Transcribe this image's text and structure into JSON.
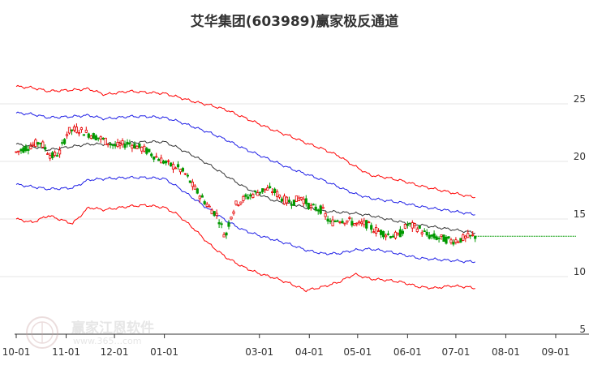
{
  "chart_data": {
    "type": "candlestick",
    "title": "艾华集团(603989)赢家极反通道",
    "ylim": [
      5,
      27.5
    ],
    "y_ticks": [
      5,
      10,
      15,
      20,
      25
    ],
    "y_tick_labels": [
      "5",
      "10",
      "15",
      "20",
      "25"
    ],
    "x_tick_labels": [
      "10-01",
      "11-01",
      "12-01",
      "01-01",
      "03-01",
      "04-01",
      "05-01",
      "06-01",
      "07-01",
      "08-01",
      "09-01"
    ],
    "x_tick_days": [
      0,
      31,
      61,
      92,
      151,
      182,
      212,
      243,
      273,
      304,
      335
    ],
    "last_day": 285,
    "last_close": 13.5,
    "colors": {
      "up": "#e60000",
      "down": "#009900",
      "outer_band": "#ff0000",
      "inner_band": "#1f1fe6",
      "middle_line": "#333333",
      "last_price_line": "#009900",
      "grid": "#e6e6e6",
      "axis": "#333333"
    },
    "series": [
      {
        "name": "upper_outer",
        "x": [
          0,
          10,
          20,
          35,
          45,
          55,
          70,
          80,
          92,
          100,
          110,
          120,
          130,
          140,
          150,
          160,
          170,
          180,
          190,
          200,
          210,
          220,
          230,
          240,
          250,
          260,
          270,
          280,
          285
        ],
        "values": [
          26.5,
          26.4,
          26.1,
          26.2,
          26.3,
          25.8,
          26.1,
          26.0,
          25.9,
          25.6,
          25.2,
          24.9,
          24.5,
          23.9,
          23.3,
          22.7,
          22.2,
          21.6,
          21.1,
          20.5,
          19.6,
          18.8,
          18.6,
          18.3,
          17.9,
          17.6,
          17.3,
          17.0,
          16.9
        ]
      },
      {
        "name": "upper_inner",
        "x": [
          0,
          10,
          20,
          35,
          45,
          55,
          70,
          80,
          92,
          100,
          110,
          120,
          130,
          140,
          150,
          160,
          170,
          180,
          190,
          200,
          210,
          220,
          230,
          240,
          250,
          260,
          270,
          280,
          285
        ],
        "values": [
          24.2,
          24.1,
          23.8,
          23.9,
          24.0,
          23.7,
          23.9,
          23.9,
          23.8,
          23.5,
          23.0,
          22.5,
          21.9,
          21.2,
          20.6,
          20.0,
          19.4,
          18.9,
          18.4,
          17.8,
          17.2,
          16.8,
          16.6,
          16.4,
          16.1,
          15.9,
          15.7,
          15.5,
          15.4
        ]
      },
      {
        "name": "middle",
        "x": [
          0,
          10,
          20,
          35,
          45,
          55,
          70,
          80,
          92,
          100,
          110,
          120,
          130,
          140,
          150,
          160,
          170,
          180,
          190,
          200,
          210,
          220,
          230,
          240,
          250,
          260,
          270,
          280,
          285
        ],
        "values": [
          21.5,
          21.3,
          21.0,
          21.3,
          21.5,
          21.5,
          21.6,
          21.7,
          21.7,
          21.2,
          20.5,
          19.7,
          18.8,
          17.9,
          17.2,
          16.6,
          16.3,
          16.0,
          15.7,
          15.6,
          15.5,
          15.3,
          15.0,
          14.7,
          14.5,
          14.3,
          14.1,
          13.9,
          13.8
        ]
      },
      {
        "name": "lower_inner",
        "x": [
          0,
          10,
          20,
          35,
          45,
          55,
          70,
          80,
          92,
          100,
          110,
          120,
          130,
          140,
          150,
          160,
          170,
          180,
          190,
          200,
          210,
          220,
          230,
          240,
          250,
          260,
          270,
          280,
          285
        ],
        "values": [
          18.0,
          17.8,
          17.6,
          17.7,
          18.4,
          18.5,
          18.6,
          18.6,
          18.5,
          17.8,
          16.8,
          15.8,
          14.9,
          14.1,
          13.6,
          13.2,
          12.8,
          12.3,
          12.0,
          12.0,
          12.3,
          12.4,
          12.2,
          11.9,
          11.6,
          11.5,
          11.4,
          11.3,
          11.3
        ]
      },
      {
        "name": "lower_outer",
        "x": [
          0,
          10,
          20,
          35,
          45,
          55,
          70,
          80,
          92,
          100,
          110,
          120,
          130,
          140,
          150,
          160,
          170,
          180,
          190,
          200,
          210,
          220,
          230,
          240,
          250,
          260,
          270,
          280,
          285
        ],
        "values": [
          15.0,
          14.7,
          15.3,
          14.6,
          16.0,
          15.8,
          16.1,
          16.2,
          16.0,
          15.4,
          14.2,
          12.8,
          11.7,
          10.9,
          10.3,
          9.9,
          9.4,
          8.8,
          9.1,
          9.5,
          10.2,
          9.8,
          9.7,
          9.5,
          9.1,
          9.0,
          9.2,
          9.1,
          9.0
        ]
      }
    ],
    "price_path": {
      "x": [
        0,
        8,
        15,
        22,
        27,
        32,
        38,
        45,
        52,
        62,
        70,
        80,
        88,
        95,
        100,
        105,
        110,
        115,
        120,
        125,
        130,
        133,
        137,
        142,
        148,
        155,
        160,
        167,
        172,
        177,
        183,
        190,
        195,
        200,
        207,
        212,
        217,
        222,
        230,
        237,
        243,
        250,
        255,
        260,
        265,
        270,
        275,
        280,
        285
      ],
      "values": [
        20.8,
        21.3,
        21.7,
        20.4,
        20.8,
        22.6,
        22.8,
        22.4,
        22.0,
        21.3,
        21.6,
        21.0,
        20.3,
        19.7,
        19.5,
        18.9,
        17.8,
        16.9,
        16.0,
        15.3,
        13.4,
        15.2,
        16.4,
        16.8,
        17.2,
        17.6,
        17.4,
        16.6,
        16.5,
        16.9,
        16.0,
        15.8,
        14.6,
        15.0,
        14.8,
        14.5,
        14.6,
        14.1,
        13.7,
        13.5,
        14.5,
        14.2,
        13.6,
        13.4,
        13.3,
        13.1,
        13.2,
        13.4,
        13.5
      ]
    },
    "watermark": {
      "text": "赢家江恩软件",
      "url": "www.365...com"
    }
  }
}
